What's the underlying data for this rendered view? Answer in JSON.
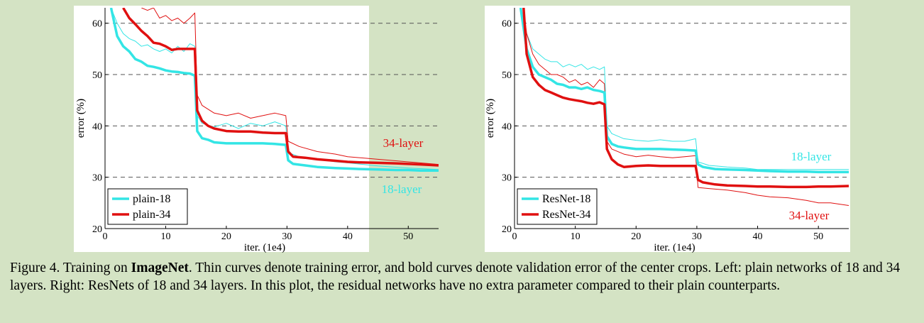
{
  "caption": {
    "lead": "Figure 4. Training on ",
    "bold": "ImageNet",
    "rest": ". Thin curves denote training error, and bold curves denote validation error of the center crops. Left: plain networks of 18 and 34 layers. Right: ResNets of 18 and 34 layers. In this plot, the residual networks have no extra parameter compared to their plain counterparts."
  },
  "colors": {
    "cyan": "#33e5e5",
    "red": "#e01010"
  },
  "chart_data": [
    {
      "type": "line",
      "xlabel": "iter. (1e4)",
      "ylabel": "error (%)",
      "xlim": [
        0,
        55
      ],
      "ylim": [
        20,
        63
      ],
      "xticks": [
        0,
        10,
        20,
        30,
        40,
        50
      ],
      "yticks": [
        20,
        30,
        40,
        50,
        60
      ],
      "grid": "horizontal dashed",
      "legend": {
        "position": "bottom-left",
        "items": [
          "plain-18",
          "plain-34"
        ]
      },
      "annotations": [
        {
          "text": "34-layer",
          "color": "red"
        },
        {
          "text": "18-layer",
          "color": "cyan"
        }
      ],
      "series": [
        {
          "name": "plain-18",
          "kind": "validation",
          "color": "cyan",
          "x": [
            1,
            2,
            3,
            4,
            5,
            6,
            7,
            8,
            9,
            10,
            11,
            12,
            13,
            14,
            14.8,
            15.2,
            16,
            17,
            18,
            20,
            22,
            24,
            26,
            28,
            29.8,
            30.2,
            31,
            33,
            35,
            38,
            40,
            42,
            45,
            48,
            50,
            52,
            55
          ],
          "y": [
            63,
            57.5,
            55.5,
            54.5,
            53,
            52.5,
            51.7,
            51.5,
            51.2,
            50.8,
            50.6,
            50.5,
            50.3,
            50.2,
            49.8,
            39,
            37.6,
            37.3,
            36.8,
            36.6,
            36.6,
            36.6,
            36.6,
            36.5,
            36.3,
            33.3,
            32.6,
            32.3,
            32,
            31.8,
            31.7,
            31.6,
            31.5,
            31.4,
            31.4,
            31.3,
            31.3
          ]
        },
        {
          "name": "plain-18 train",
          "kind": "training",
          "color": "cyan",
          "x": [
            1,
            2,
            3,
            4,
            5,
            6,
            7,
            8,
            9,
            10,
            11,
            12,
            13,
            14,
            14.8,
            15.2,
            16,
            18,
            20,
            22,
            24,
            26,
            28,
            29.8,
            30.2,
            32,
            35,
            38,
            40,
            45,
            50,
            55
          ],
          "y": [
            63,
            60,
            58,
            57,
            56.5,
            55.5,
            55.8,
            55,
            54.5,
            55,
            54.2,
            55.5,
            54.5,
            56,
            55.5,
            42,
            40.5,
            39.8,
            40.5,
            39.5,
            40.5,
            40,
            40.8,
            40,
            34.8,
            34,
            33.5,
            33,
            32.8,
            32.2,
            31.8,
            31.5
          ]
        },
        {
          "name": "plain-34",
          "kind": "validation",
          "color": "red",
          "x": [
            3,
            4,
            5,
            6,
            7,
            8,
            9,
            10,
            11,
            12,
            13,
            14,
            14.8,
            15.2,
            16,
            17,
            18,
            20,
            22,
            24,
            26,
            28,
            29.8,
            30.2,
            31,
            33,
            35,
            38,
            40,
            42,
            45,
            48,
            50,
            52,
            55
          ],
          "y": [
            63,
            61,
            59.8,
            58.5,
            57.5,
            56.2,
            56,
            55.5,
            54.8,
            55,
            55,
            55,
            55,
            43,
            41,
            40,
            39.5,
            39,
            38.9,
            38.9,
            38.7,
            38.6,
            38.6,
            35,
            34,
            33.8,
            33.5,
            33.2,
            33,
            32.9,
            32.8,
            32.7,
            32.6,
            32.5,
            32.3
          ]
        },
        {
          "name": "plain-34 train",
          "kind": "training",
          "color": "red",
          "x": [
            6,
            7,
            8,
            9,
            10,
            11,
            12,
            13,
            14,
            14.8,
            15.2,
            16,
            18,
            20,
            22,
            24,
            26,
            28,
            29.8,
            30.2,
            32,
            35,
            38,
            40,
            45,
            50,
            55
          ],
          "y": [
            63,
            62.5,
            63,
            61,
            61.5,
            60.5,
            61,
            60,
            61,
            62,
            46,
            44,
            42.5,
            42,
            42.5,
            41.5,
            42,
            42.5,
            42,
            37,
            36,
            35,
            34.5,
            34,
            33.5,
            33,
            32.5
          ]
        }
      ]
    },
    {
      "type": "line",
      "xlabel": "iter. (1e4)",
      "ylabel": "error (%)",
      "xlim": [
        0,
        55
      ],
      "ylim": [
        20,
        63
      ],
      "xticks": [
        0,
        10,
        20,
        30,
        40,
        50
      ],
      "yticks": [
        20,
        30,
        40,
        50,
        60
      ],
      "grid": "horizontal dashed",
      "legend": {
        "position": "bottom-left",
        "items": [
          "ResNet-18",
          "ResNet-34"
        ]
      },
      "annotations": [
        {
          "text": "18-layer",
          "color": "cyan"
        },
        {
          "text": "34-layer",
          "color": "red"
        }
      ],
      "series": [
        {
          "name": "ResNet-18",
          "kind": "validation",
          "color": "cyan",
          "x": [
            1,
            2,
            3,
            4,
            5,
            6,
            7,
            8,
            9,
            10,
            11,
            12,
            13,
            14,
            14.8,
            15.2,
            16,
            17,
            18,
            20,
            22,
            24,
            26,
            28,
            29.8,
            30.2,
            31,
            33,
            35,
            38,
            40,
            42,
            45,
            48,
            50,
            52,
            55
          ],
          "y": [
            63,
            55,
            51.5,
            50,
            49.5,
            49,
            48.2,
            48,
            47.5,
            47.5,
            47.2,
            47.5,
            47,
            46.8,
            46.5,
            38,
            36.5,
            36,
            35.8,
            35.5,
            35.5,
            35.5,
            35.4,
            35.3,
            35.2,
            32.5,
            32,
            31.6,
            31.5,
            31.4,
            31.3,
            31.2,
            31.1,
            31.1,
            31,
            31,
            31
          ]
        },
        {
          "name": "ResNet-18 train",
          "kind": "training",
          "color": "cyan",
          "x": [
            1,
            2,
            3,
            4,
            5,
            6,
            7,
            8,
            9,
            10,
            11,
            12,
            13,
            14,
            14.8,
            15.2,
            16,
            18,
            20,
            22,
            24,
            26,
            28,
            29.8,
            30.2,
            32,
            35,
            38,
            40,
            45,
            50,
            55
          ],
          "y": [
            63,
            58,
            55,
            54,
            53,
            52.5,
            52.5,
            51.5,
            52,
            51.5,
            52,
            51,
            51.5,
            51,
            51.5,
            40,
            38.5,
            37.5,
            37.2,
            37,
            37.3,
            37,
            37,
            37.5,
            33,
            32.3,
            32,
            31.8,
            31.5,
            31.5,
            31.5,
            31.5
          ]
        },
        {
          "name": "ResNet-34",
          "kind": "validation",
          "color": "red",
          "x": [
            1.5,
            2,
            3,
            4,
            5,
            6,
            7,
            8,
            9,
            10,
            11,
            12,
            13,
            14,
            14.8,
            15.2,
            16,
            17,
            18,
            20,
            22,
            24,
            26,
            28,
            29.8,
            30.2,
            31,
            33,
            35,
            38,
            40,
            42,
            45,
            48,
            50,
            52,
            55
          ],
          "y": [
            63,
            54,
            49.5,
            48,
            47,
            46.5,
            46,
            45.5,
            45.2,
            45,
            44.8,
            44.5,
            44.3,
            44.6,
            44.2,
            35.5,
            33.5,
            32.5,
            32,
            32.2,
            32.3,
            32.2,
            32.2,
            32.2,
            32.2,
            29.5,
            29,
            28.6,
            28.4,
            28.3,
            28.2,
            28.2,
            28.1,
            28.1,
            28.2,
            28.2,
            28.3
          ]
        },
        {
          "name": "ResNet-34 train",
          "kind": "training",
          "color": "red",
          "x": [
            1.5,
            2,
            3,
            4,
            5,
            6,
            7,
            8,
            9,
            10,
            11,
            12,
            13,
            14,
            14.8,
            15.2,
            16,
            18,
            20,
            22,
            24,
            26,
            28,
            29.8,
            30.2,
            32,
            35,
            38,
            40,
            42,
            45,
            48,
            50,
            52,
            55
          ],
          "y": [
            63,
            58,
            54,
            52,
            51,
            50,
            50,
            49.5,
            48.5,
            49,
            48,
            48.5,
            47.5,
            49,
            48.2,
            37,
            35.5,
            34.5,
            34,
            34.3,
            34,
            33.8,
            34,
            34.2,
            28,
            27.8,
            27.5,
            27,
            26.5,
            26.2,
            26,
            25.5,
            25,
            25,
            24.5
          ]
        }
      ]
    }
  ]
}
